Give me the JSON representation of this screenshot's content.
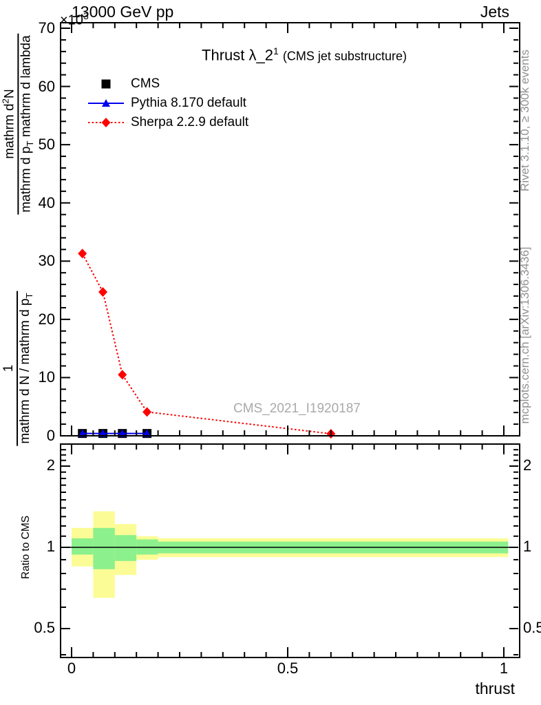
{
  "header": {
    "scale_prefix": "×10",
    "scale_exp": "3",
    "beam_title": "13000 GeV pp",
    "top_right": "Jets"
  },
  "plot": {
    "title_main": "Thrust λ_2",
    "title_sup": "1",
    "title_paren": "(CMS jet substructure)",
    "watermark": "CMS_2021_I1920187",
    "right_note_top": "Rivet 3.1.10, ≥ 300k events",
    "right_note_bottom": "mcplots.cern.ch [arXiv:1306.3436]",
    "ylabel": {
      "upper_num_a": "mathrm d",
      "upper_num_sup": "2",
      "upper_num_b": "N",
      "upper_den_a": "mathrm d p",
      "upper_den_a_sub": "T",
      "upper_den_b": " mathrm d lambda",
      "lower_num": "1",
      "lower_den_a": "mathrm d N / mathrm d p",
      "lower_den_a_sub": "T"
    }
  },
  "legend": {
    "items": [
      {
        "label": "CMS",
        "marker": "square",
        "color": "#000000",
        "line": "none"
      },
      {
        "label": "Pythia 8.170 default",
        "marker": "triangle",
        "color": "#0000ee",
        "line": "solid"
      },
      {
        "label": "Sherpa 2.2.9 default",
        "marker": "diamond",
        "color": "#ff0000",
        "line": "dotted"
      }
    ]
  },
  "ratio": {
    "ylabel": "Ratio to CMS"
  },
  "xaxis": {
    "label": "thrust"
  },
  "chart_data": {
    "type": "line",
    "title": "Thrust λ_2^1 (CMS jet substructure)",
    "xlabel": "thrust",
    "ylabel": "1/(dN/dp_T) · d^2N/(dp_T dlambda) [×10^3]",
    "xlim": [
      0,
      1
    ],
    "ylim": [
      0,
      70
    ],
    "xticks": [
      0,
      0.5,
      1
    ],
    "xtick_labels": [
      "0",
      "0.5",
      "1"
    ],
    "x_minor_step": 0.05,
    "yticks": [
      0,
      10,
      20,
      30,
      40,
      50,
      60,
      70
    ],
    "ytick_labels": [
      "0",
      "10",
      "20",
      "30",
      "40",
      "50",
      "60",
      "70"
    ],
    "y_minor_step": 2,
    "grid": false,
    "legend_position": "upper-left-inside",
    "series": [
      {
        "name": "CMS",
        "marker": "square",
        "color": "#000000",
        "line": "none",
        "x": [
          0.025,
          0.0725,
          0.1175,
          0.1745
        ],
        "y": [
          0.4,
          0.4,
          0.4,
          0.4
        ]
      },
      {
        "name": "Pythia 8.170 default",
        "marker": "triangle",
        "color": "#0000ee",
        "line": "solid",
        "x": [
          0.025,
          0.0725,
          0.1175,
          0.1745
        ],
        "y": [
          0.4,
          0.4,
          0.4,
          0.4
        ]
      },
      {
        "name": "Sherpa 2.2.9 default",
        "marker": "diamond",
        "color": "#ff0000",
        "line": "dotted",
        "x": [
          0.025,
          0.0725,
          0.1175,
          0.1745,
          0.6
        ],
        "y": [
          31.3,
          24.7,
          10.5,
          4.1,
          0.35
        ]
      }
    ],
    "ratio_panel": {
      "ylabel": "Ratio to CMS",
      "yscale": "log2",
      "ylim": [
        0.39,
        2.41
      ],
      "yticks": [
        0.5,
        1,
        2
      ],
      "ytick_labels": [
        "0.5",
        "1",
        "2"
      ],
      "yminor": [
        0.4,
        0.6,
        0.7,
        0.8,
        0.9,
        1.1,
        1.2,
        1.3,
        1.4,
        1.5,
        1.6,
        1.7,
        1.8,
        1.9,
        2.1,
        2.2,
        2.3,
        2.4
      ],
      "ref_line": 1,
      "bins": [
        {
          "x0": 0.0,
          "x1": 0.05,
          "yellow": [
            0.85,
            1.18
          ],
          "green": [
            0.94,
            1.08
          ]
        },
        {
          "x0": 0.05,
          "x1": 0.1,
          "yellow": [
            0.65,
            1.36
          ],
          "green": [
            0.83,
            1.18
          ]
        },
        {
          "x0": 0.1,
          "x1": 0.15,
          "yellow": [
            0.79,
            1.22
          ],
          "green": [
            0.89,
            1.11
          ]
        },
        {
          "x0": 0.15,
          "x1": 0.2,
          "yellow": [
            0.9,
            1.1
          ],
          "green": [
            0.94,
            1.07
          ]
        },
        {
          "x0": 0.2,
          "x1": 1.01,
          "yellow": [
            0.92,
            1.08
          ],
          "green": [
            0.95,
            1.05
          ]
        }
      ]
    },
    "colors": {
      "band_yellow": "#fcfc96",
      "band_green": "#8cf08c",
      "frame": "#000000",
      "note_gray": "#909090"
    }
  }
}
